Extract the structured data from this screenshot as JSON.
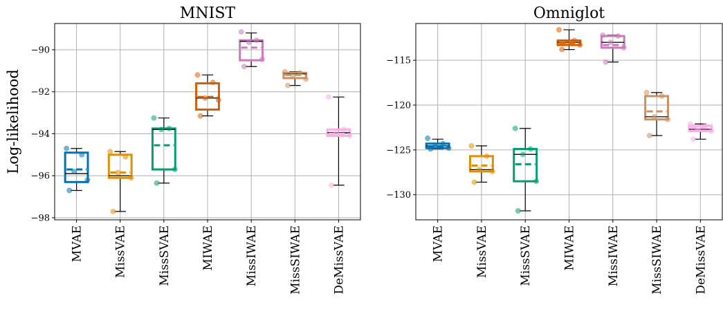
{
  "chart_data": [
    {
      "type": "box",
      "title": "MNIST",
      "ylabel": "Log-likelihood",
      "ylim": [
        -98.1,
        -88.75
      ],
      "yticks": [
        -98,
        -96,
        -94,
        -92,
        -90
      ],
      "ytick_labels": [
        "−98",
        "−96",
        "−94",
        "−92",
        "−90"
      ],
      "grid": true,
      "categories": [
        "MVAE",
        "MissVAE",
        "MissSVAE",
        "MIWAE",
        "MissIWAE",
        "MissSIWAE",
        "DeMissVAE"
      ],
      "colors": [
        "#0173b2",
        "#de8f05",
        "#029e73",
        "#d55e00",
        "#cc78bc",
        "#ca9161",
        "#fbafe4"
      ],
      "boxes": [
        {
          "whislo": -96.7,
          "q1": -96.3,
          "med": -95.9,
          "mean": -95.7,
          "q3": -94.9,
          "whishi": -94.7,
          "points": [
            -94.7,
            -95.0,
            -95.8,
            -96.2,
            -96.7
          ]
        },
        {
          "whislo": -97.7,
          "q1": -96.1,
          "med": -96.0,
          "mean": -95.85,
          "q3": -95.0,
          "whishi": -94.85,
          "points": [
            -94.85,
            -95.1,
            -95.85,
            -96.1,
            -97.7
          ]
        },
        {
          "whislo": -96.35,
          "q1": -95.7,
          "med": -93.8,
          "mean": -94.55,
          "q3": -93.75,
          "whishi": -93.25,
          "points": [
            -93.25,
            -93.75,
            -93.8,
            -95.7,
            -96.35
          ]
        },
        {
          "whislo": -93.15,
          "q1": -92.85,
          "med": -92.3,
          "mean": -92.25,
          "q3": -91.6,
          "whishi": -91.2,
          "points": [
            -91.2,
            -91.55,
            -92.3,
            -92.4,
            -93.15
          ]
        },
        {
          "whislo": -90.8,
          "q1": -90.5,
          "med": -89.6,
          "mean": -89.9,
          "q3": -89.55,
          "whishi": -89.2,
          "points": [
            -89.15,
            -89.55,
            -89.65,
            -90.45,
            -90.8
          ]
        },
        {
          "whislo": -91.7,
          "q1": -91.35,
          "med": -91.15,
          "mean": -91.2,
          "q3": -91.1,
          "whishi": -91.05,
          "points": [
            -91.05,
            -91.1,
            -91.2,
            -91.4,
            -91.7
          ]
        },
        {
          "whislo": -96.45,
          "q1": -94.1,
          "med": -93.95,
          "mean": -94.0,
          "q3": -93.8,
          "whishi": -92.25,
          "points": [
            -92.25,
            -93.8,
            -93.95,
            -94.1,
            -96.45
          ]
        }
      ]
    },
    {
      "type": "box",
      "title": "Omniglot",
      "ylabel": "",
      "ylim": [
        -132.8,
        -110.9
      ],
      "yticks": [
        -130,
        -125,
        -120,
        -115
      ],
      "ytick_labels": [
        "−130",
        "−125",
        "−120",
        "−115"
      ],
      "grid": true,
      "categories": [
        "MVAE",
        "MissVAE",
        "MissSVAE",
        "MIWAE",
        "MissIWAE",
        "MissSIWAE",
        "DeMissVAE"
      ],
      "colors": [
        "#0173b2",
        "#de8f05",
        "#029e73",
        "#d55e00",
        "#cc78bc",
        "#ca9161",
        "#fbafe4"
      ],
      "boxes": [
        {
          "whislo": -124.9,
          "q1": -124.8,
          "med": -124.55,
          "mean": -124.6,
          "q3": -124.3,
          "whishi": -123.8,
          "points": [
            -123.7,
            -124.3,
            -124.6,
            -124.8,
            -124.9
          ]
        },
        {
          "whislo": -128.6,
          "q1": -127.4,
          "med": -127.2,
          "mean": -126.75,
          "q3": -125.7,
          "whishi": -124.55,
          "points": [
            -124.55,
            -125.7,
            -127.2,
            -127.4,
            -128.6
          ]
        },
        {
          "whislo": -131.8,
          "q1": -128.5,
          "med": -125.5,
          "mean": -126.6,
          "q3": -124.9,
          "whishi": -122.6,
          "points": [
            -122.6,
            -124.9,
            -125.5,
            -128.5,
            -131.8
          ]
        },
        {
          "whislo": -113.8,
          "q1": -113.3,
          "med": -113.0,
          "mean": -113.05,
          "q3": -112.8,
          "whishi": -111.6,
          "points": [
            -111.6,
            -112.8,
            -113.0,
            -113.3,
            -113.8
          ]
        },
        {
          "whislo": -115.2,
          "q1": -113.6,
          "med": -113.0,
          "mean": -113.3,
          "q3": -112.3,
          "whishi": -112.2,
          "points": [
            -112.2,
            -112.3,
            -113.0,
            -113.6,
            -115.2
          ]
        },
        {
          "whislo": -123.4,
          "q1": -121.6,
          "med": -121.3,
          "mean": -120.7,
          "q3": -119.0,
          "whishi": -118.6,
          "points": [
            -118.6,
            -119.0,
            -121.3,
            -121.6,
            -123.4
          ]
        },
        {
          "whislo": -123.8,
          "q1": -122.9,
          "med": -122.7,
          "mean": -122.55,
          "q3": -122.3,
          "whishi": -122.1,
          "points": [
            -122.1,
            -122.3,
            -122.7,
            -122.9,
            -123.8
          ]
        }
      ]
    }
  ]
}
